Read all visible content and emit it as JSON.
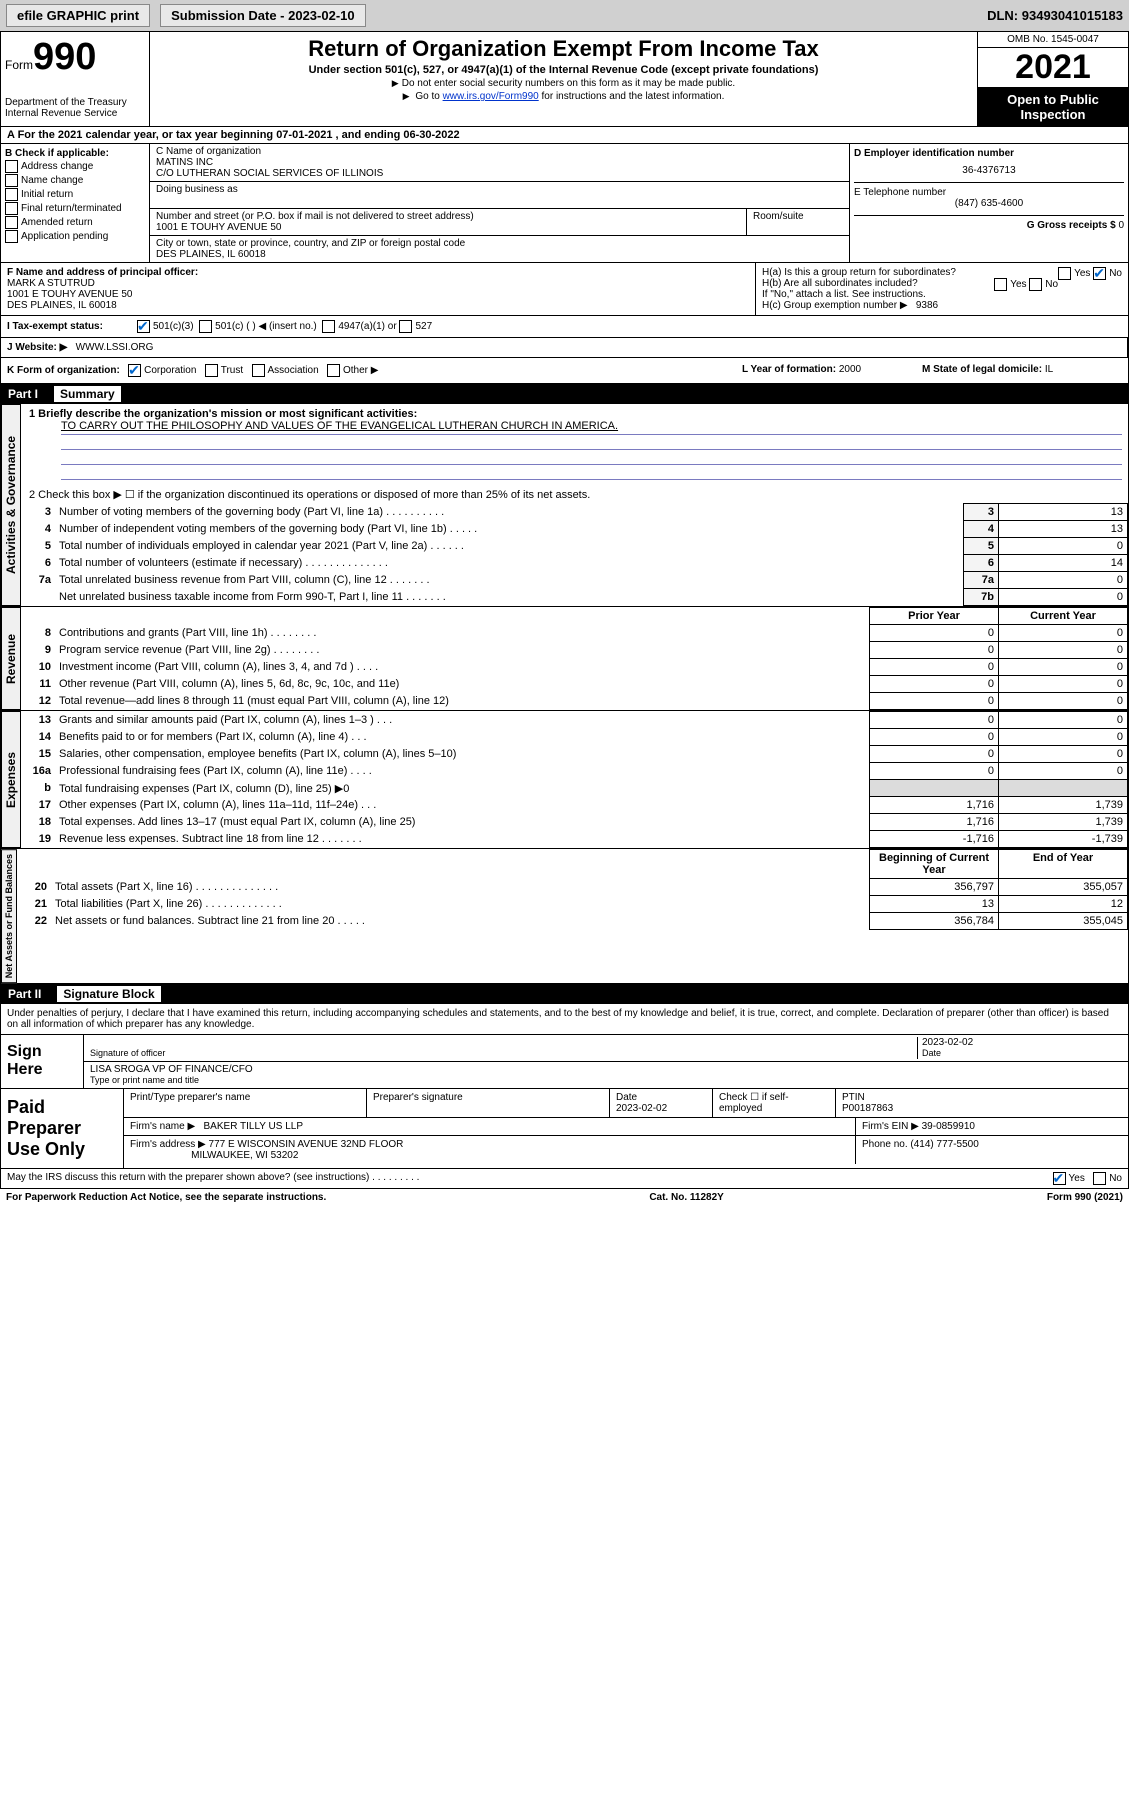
{
  "topbar": {
    "efile": "efile GRAPHIC print",
    "submission_lbl": "Submission Date - ",
    "submission_date": "2023-02-10",
    "dln_lbl": "DLN: ",
    "dln": "93493041015183"
  },
  "header": {
    "form_prefix": "Form",
    "form_num": "990",
    "dept": "Department of the Treasury\nInternal Revenue Service",
    "title": "Return of Organization Exempt From Income Tax",
    "sub": "Under section 501(c), 527, or 4947(a)(1) of the Internal Revenue Code (except private foundations)",
    "note1": "Do not enter social security numbers on this form as it may be made public.",
    "note2_pre": "Go to ",
    "note2_link": "www.irs.gov/Form990",
    "note2_post": " for instructions and the latest information.",
    "omb": "OMB No. 1545-0047",
    "year": "2021",
    "otp": "Open to Public Inspection"
  },
  "row_a": {
    "text": "A  For the 2021 calendar year, or tax year beginning 07-01-2021   , and ending 06-30-2022"
  },
  "col_b": {
    "lbl": "B Check if applicable:",
    "opts": [
      "Address change",
      "Name change",
      "Initial return",
      "Final return/terminated",
      "Amended return",
      "Application pending"
    ]
  },
  "col_c": {
    "name_lbl": "C Name of organization",
    "name1": "MATINS INC",
    "name2": "C/O LUTHERAN SOCIAL SERVICES OF ILLINOIS",
    "dba_lbl": "Doing business as",
    "dba": "",
    "addr_lbl": "Number and street (or P.O. box if mail is not delivered to street address)",
    "addr": "1001 E TOUHY AVENUE 50",
    "room_lbl": "Room/suite",
    "city_lbl": "City or town, state or province, country, and ZIP or foreign postal code",
    "city": "DES PLAINES, IL  60018"
  },
  "col_d": {
    "ein_lbl": "D Employer identification number",
    "ein": "36-4376713",
    "tel_lbl": "E Telephone number",
    "tel": "(847) 635-4600",
    "gross_lbl": "G Gross receipts $",
    "gross": "0"
  },
  "row_f": {
    "lbl": "F  Name and address of principal officer:",
    "name": "MARK A STUTRUD",
    "addr1": "1001 E TOUHY AVENUE 50",
    "addr2": "DES PLAINES, IL  60018"
  },
  "row_h": {
    "ha": "H(a)  Is this a group return for subordinates?",
    "hb": "H(b)  Are all subordinates included?",
    "hb_note": "If \"No,\" attach a list. See instructions.",
    "hc": "H(c)  Group exemption number ▶",
    "hc_val": "9386",
    "yes": "Yes",
    "no": "No"
  },
  "row_i": {
    "lbl": "I  Tax-exempt status:",
    "o1": "501(c)(3)",
    "o2": "501(c) (  ) ◀ (insert no.)",
    "o3": "4947(a)(1) or",
    "o4": "527"
  },
  "row_j": {
    "lbl": "J  Website: ▶",
    "val": "WWW.LSSI.ORG"
  },
  "row_k": {
    "lbl": "K Form of organization:",
    "o1": "Corporation",
    "o2": "Trust",
    "o3": "Association",
    "o4": "Other ▶",
    "l_lbl": "L Year of formation:",
    "l_val": "2000",
    "m_lbl": "M State of legal domicile:",
    "m_val": "IL"
  },
  "part1": {
    "num": "Part I",
    "title": "Summary",
    "q1_lbl": "1  Briefly describe the organization's mission or most significant activities:",
    "q1_val": "TO CARRY OUT THE PHILOSOPHY AND VALUES OF THE EVANGELICAL LUTHERAN CHURCH IN AMERICA.",
    "q2": "2  Check this box ▶ ☐  if the organization discontinued its operations or disposed of more than 25% of its net assets.",
    "side_gov": "Activities & Governance",
    "side_rev": "Revenue",
    "side_exp": "Expenses",
    "side_net": "Net Assets or Fund Balances",
    "rows_gov": [
      {
        "n": "3",
        "d": "Number of voting members of the governing body (Part VI, line 1a)  .  .  .  .  .  .  .  .  .  .",
        "sn": "3",
        "v": "13"
      },
      {
        "n": "4",
        "d": "Number of independent voting members of the governing body (Part VI, line 1b)  .  .  .  .  .",
        "sn": "4",
        "v": "13"
      },
      {
        "n": "5",
        "d": "Total number of individuals employed in calendar year 2021 (Part V, line 2a)  .  .  .  .  .  .",
        "sn": "5",
        "v": "0"
      },
      {
        "n": "6",
        "d": "Total number of volunteers (estimate if necessary)  .  .  .  .  .  .  .  .  .  .  .  .  .  .",
        "sn": "6",
        "v": "14"
      },
      {
        "n": "7a",
        "d": "Total unrelated business revenue from Part VIII, column (C), line 12  .  .  .  .  .  .  .",
        "sn": "7a",
        "v": "0"
      },
      {
        "n": "",
        "d": "Net unrelated business taxable income from Form 990-T, Part I, line 11  .  .  .  .  .  .  .",
        "sn": "7b",
        "v": "0"
      }
    ],
    "hdr_prior": "Prior Year",
    "hdr_curr": "Current Year",
    "rows_rev": [
      {
        "n": "8",
        "d": "Contributions and grants (Part VIII, line 1h)  .  .  .  .  .  .  .  .",
        "p": "0",
        "c": "0"
      },
      {
        "n": "9",
        "d": "Program service revenue (Part VIII, line 2g)  .  .  .  .  .  .  .  .",
        "p": "0",
        "c": "0"
      },
      {
        "n": "10",
        "d": "Investment income (Part VIII, column (A), lines 3, 4, and 7d )  .  .  .  .",
        "p": "0",
        "c": "0"
      },
      {
        "n": "11",
        "d": "Other revenue (Part VIII, column (A), lines 5, 6d, 8c, 9c, 10c, and 11e)",
        "p": "0",
        "c": "0"
      },
      {
        "n": "12",
        "d": "Total revenue—add lines 8 through 11 (must equal Part VIII, column (A), line 12)",
        "p": "0",
        "c": "0"
      }
    ],
    "rows_exp": [
      {
        "n": "13",
        "d": "Grants and similar amounts paid (Part IX, column (A), lines 1–3 )  .  .  .",
        "p": "0",
        "c": "0"
      },
      {
        "n": "14",
        "d": "Benefits paid to or for members (Part IX, column (A), line 4)  .  .  .",
        "p": "0",
        "c": "0"
      },
      {
        "n": "15",
        "d": "Salaries, other compensation, employee benefits (Part IX, column (A), lines 5–10)",
        "p": "0",
        "c": "0"
      },
      {
        "n": "16a",
        "d": "Professional fundraising fees (Part IX, column (A), line 11e)  .  .  .  .",
        "p": "0",
        "c": "0"
      },
      {
        "n": "b",
        "d": "Total fundraising expenses (Part IX, column (D), line 25) ▶0",
        "p": "",
        "c": "",
        "shade": true
      },
      {
        "n": "17",
        "d": "Other expenses (Part IX, column (A), lines 11a–11d, 11f–24e)  .  .  .",
        "p": "1,716",
        "c": "1,739"
      },
      {
        "n": "18",
        "d": "Total expenses. Add lines 13–17 (must equal Part IX, column (A), line 25)",
        "p": "1,716",
        "c": "1,739"
      },
      {
        "n": "19",
        "d": "Revenue less expenses. Subtract line 18 from line 12  .  .  .  .  .  .  .",
        "p": "-1,716",
        "c": "-1,739"
      }
    ],
    "hdr_beg": "Beginning of Current Year",
    "hdr_end": "End of Year",
    "rows_net": [
      {
        "n": "20",
        "d": "Total assets (Part X, line 16)  .  .  .  .  .  .  .  .  .  .  .  .  .  .",
        "p": "356,797",
        "c": "355,057"
      },
      {
        "n": "21",
        "d": "Total liabilities (Part X, line 26)  .  .  .  .  .  .  .  .  .  .  .  .  .",
        "p": "13",
        "c": "12"
      },
      {
        "n": "22",
        "d": "Net assets or fund balances. Subtract line 21 from line 20  .  .  .  .  .",
        "p": "356,784",
        "c": "355,045"
      }
    ]
  },
  "part2": {
    "num": "Part II",
    "title": "Signature Block",
    "intro": "Under penalties of perjury, I declare that I have examined this return, including accompanying schedules and statements, and to the best of my knowledge and belief, it is true, correct, and complete. Declaration of preparer (other than officer) is based on all information of which preparer has any knowledge.",
    "sign_here": "Sign Here",
    "sig_officer_lbl": "Signature of officer",
    "sig_date": "2023-02-02",
    "date_lbl": "Date",
    "sig_name": "LISA SROGA  VP OF FINANCE/CFO",
    "sig_name_lbl": "Type or print name and title",
    "paid": "Paid Preparer Use Only",
    "p_name_lbl": "Print/Type preparer's name",
    "p_sig_lbl": "Preparer's signature",
    "p_date_lbl": "Date",
    "p_date": "2023-02-02",
    "p_self_lbl": "Check ☐ if self-employed",
    "ptin_lbl": "PTIN",
    "ptin": "P00187863",
    "firm_lbl": "Firm's name   ▶",
    "firm": "BAKER TILLY US LLP",
    "firm_ein_lbl": "Firm's EIN ▶",
    "firm_ein": "39-0859910",
    "firm_addr_lbl": "Firm's address ▶",
    "firm_addr1": "777 E WISCONSIN AVENUE 32ND FLOOR",
    "firm_addr2": "MILWAUKEE, WI  53202",
    "firm_phone_lbl": "Phone no.",
    "firm_phone": "(414) 777-5500"
  },
  "footer": {
    "q": "May the IRS discuss this return with the preparer shown above? (see instructions)  .  .  .  .  .  .  .  .  .",
    "yes": "Yes",
    "no": "No",
    "pra": "For Paperwork Reduction Act Notice, see the separate instructions.",
    "cat": "Cat. No. 11282Y",
    "form": "Form 990 (2021)"
  }
}
